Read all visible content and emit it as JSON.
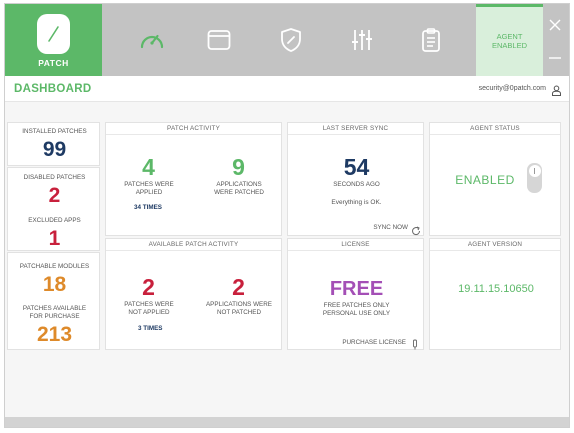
{
  "app": {
    "logo_label": "PATCH"
  },
  "nav": {
    "items": [
      {
        "name": "dashboard",
        "icon": "speedometer-icon"
      },
      {
        "name": "applications",
        "icon": "window-icon"
      },
      {
        "name": "security",
        "icon": "shield-icon"
      },
      {
        "name": "settings",
        "icon": "sliders-icon"
      },
      {
        "name": "reports",
        "icon": "clipboard-icon"
      }
    ],
    "agent_tab": {
      "line1": "AGENT",
      "line2": "ENABLED"
    }
  },
  "header": {
    "title": "DASHBOARD",
    "user_email": "security@0patch.com"
  },
  "left_panel": {
    "installed_label": "INSTALLED PATCHES",
    "installed_value": "99",
    "disabled_label": "DISABLED PATCHES",
    "disabled_value": "2",
    "excluded_label": "EXCLUDED APPS",
    "excluded_value": "1",
    "patchable_label": "PATCHABLE MODULES",
    "patchable_value": "18",
    "available_label_1": "PATCHES AVAILABLE",
    "available_label_2": "FOR PURCHASE",
    "available_value": "213"
  },
  "patch_activity": {
    "title": "PATCH ACTIVITY",
    "applied_value": "4",
    "applied_label_1": "PATCHES WERE",
    "applied_label_2": "APPLIED",
    "apps_value": "9",
    "apps_label_1": "APPLICATIONS",
    "apps_label_2": "WERE PATCHED",
    "times": "34 TIMES"
  },
  "server_sync": {
    "title": "LAST SERVER SYNC",
    "value": "54",
    "unit": "SECONDS AGO",
    "status": "Everything is OK.",
    "sync_label": "SYNC NOW"
  },
  "agent_status": {
    "title": "AGENT STATUS",
    "value": "ENABLED"
  },
  "available_activity": {
    "title": "AVAILABLE PATCH ACTIVITY",
    "not_applied_value": "2",
    "not_applied_label_1": "PATCHES WERE",
    "not_applied_label_2": "NOT APPLIED",
    "not_patched_value": "2",
    "not_patched_label_1": "APPLICATIONS WERE",
    "not_patched_label_2": "NOT PATCHED",
    "times": "3 TIMES"
  },
  "license": {
    "title": "LICENSE",
    "value": "FREE",
    "line1": "FREE PATCHES ONLY",
    "line2": "PERSONAL USE ONLY",
    "purchase_label": "PURCHASE LICENSE"
  },
  "agent_version": {
    "title": "AGENT VERSION",
    "value": "19.11.15.10650"
  },
  "colors": {
    "brand_green": "#5cb868",
    "navy": "#1e3a63",
    "red": "#c8203c",
    "orange": "#de8a2a",
    "purple": "#a44fb6"
  }
}
